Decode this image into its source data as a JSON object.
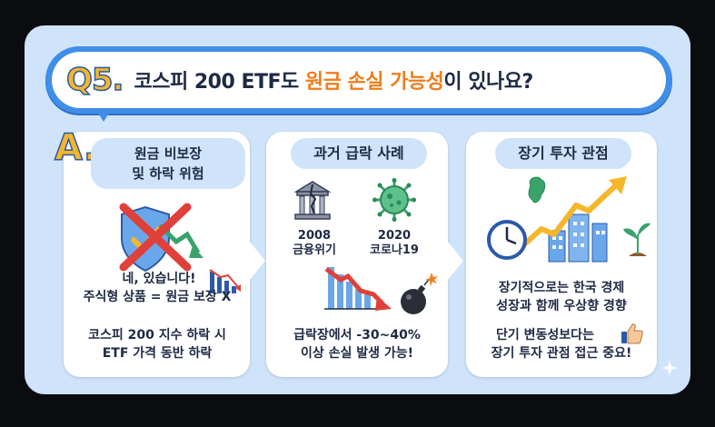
{
  "question": {
    "label": "Q5.",
    "before": "코스피 200 ETF도 ",
    "highlight": "원금 손실 가능성",
    "after": "이 있나요?"
  },
  "answer_label": "A.",
  "panel1": {
    "title_line1": "원금 비보장",
    "title_line2": "및 하락 위험",
    "body_line1": "네, 있습니다!",
    "body_line2": "주식형 상품 = 원금 보장 X",
    "body_line3": "코스피 200 지수 하락 시",
    "body_line4": "ETF 가격 동반 하락"
  },
  "panel2": {
    "title": "과거 급락 사례",
    "event1_year": "2008",
    "event1_name": "금융위기",
    "event2_year": "2020",
    "event2_name": "코로나19",
    "body_line1": "급락장에서 -30~40%",
    "body_line2": "이상 손실 발생 가능!"
  },
  "panel3": {
    "title": "장기 투자 관점",
    "body_line1": "장기적으로는 한국 경제",
    "body_line2": "성장과 함께 우상향 경향",
    "body_line3": "단기 변동성보다는",
    "body_line4": "장기 투자 관점 접근 중요!"
  },
  "colors": {
    "banner": "#3f8ee8",
    "highlight": "#f07d1a",
    "label": "#f5b62a",
    "card": "#cfe3fa"
  }
}
